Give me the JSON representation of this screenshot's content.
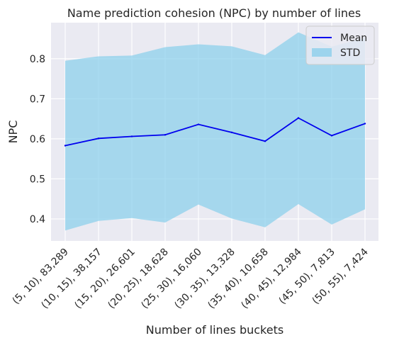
{
  "chart_data": {
    "type": "line",
    "title": "Name prediction cohesion (NPC) by number of lines",
    "xlabel": "Number of lines buckets",
    "ylabel": "NPC",
    "categories": [
      "(5, 10), 83,289",
      "(10, 15), 38,157",
      "(15, 20), 26,601",
      "(20, 25), 18,628",
      "(25, 30), 16,060",
      "(30, 35), 13,328",
      "(35, 40), 10,658",
      "(40, 45), 12,984",
      "(45, 50), 7,813",
      "(50, 55), 7,424"
    ],
    "series": [
      {
        "name": "Mean",
        "type": "line",
        "color": "#0000ee",
        "values": [
          0.583,
          0.601,
          0.606,
          0.61,
          0.636,
          0.616,
          0.594,
          0.652,
          0.608,
          0.638
        ]
      },
      {
        "name": "STD",
        "type": "band",
        "color": "#87ceeb",
        "upper": [
          0.795,
          0.806,
          0.808,
          0.829,
          0.836,
          0.831,
          0.809,
          0.866,
          0.83,
          0.852
        ],
        "lower": [
          0.371,
          0.395,
          0.402,
          0.391,
          0.436,
          0.401,
          0.379,
          0.437,
          0.386,
          0.424
        ]
      }
    ],
    "ylim": [
      0.345,
      0.89
    ],
    "yticks": [
      "0.4",
      "0.5",
      "0.6",
      "0.7",
      "0.8"
    ],
    "grid": true,
    "legend_position": "top-right"
  }
}
